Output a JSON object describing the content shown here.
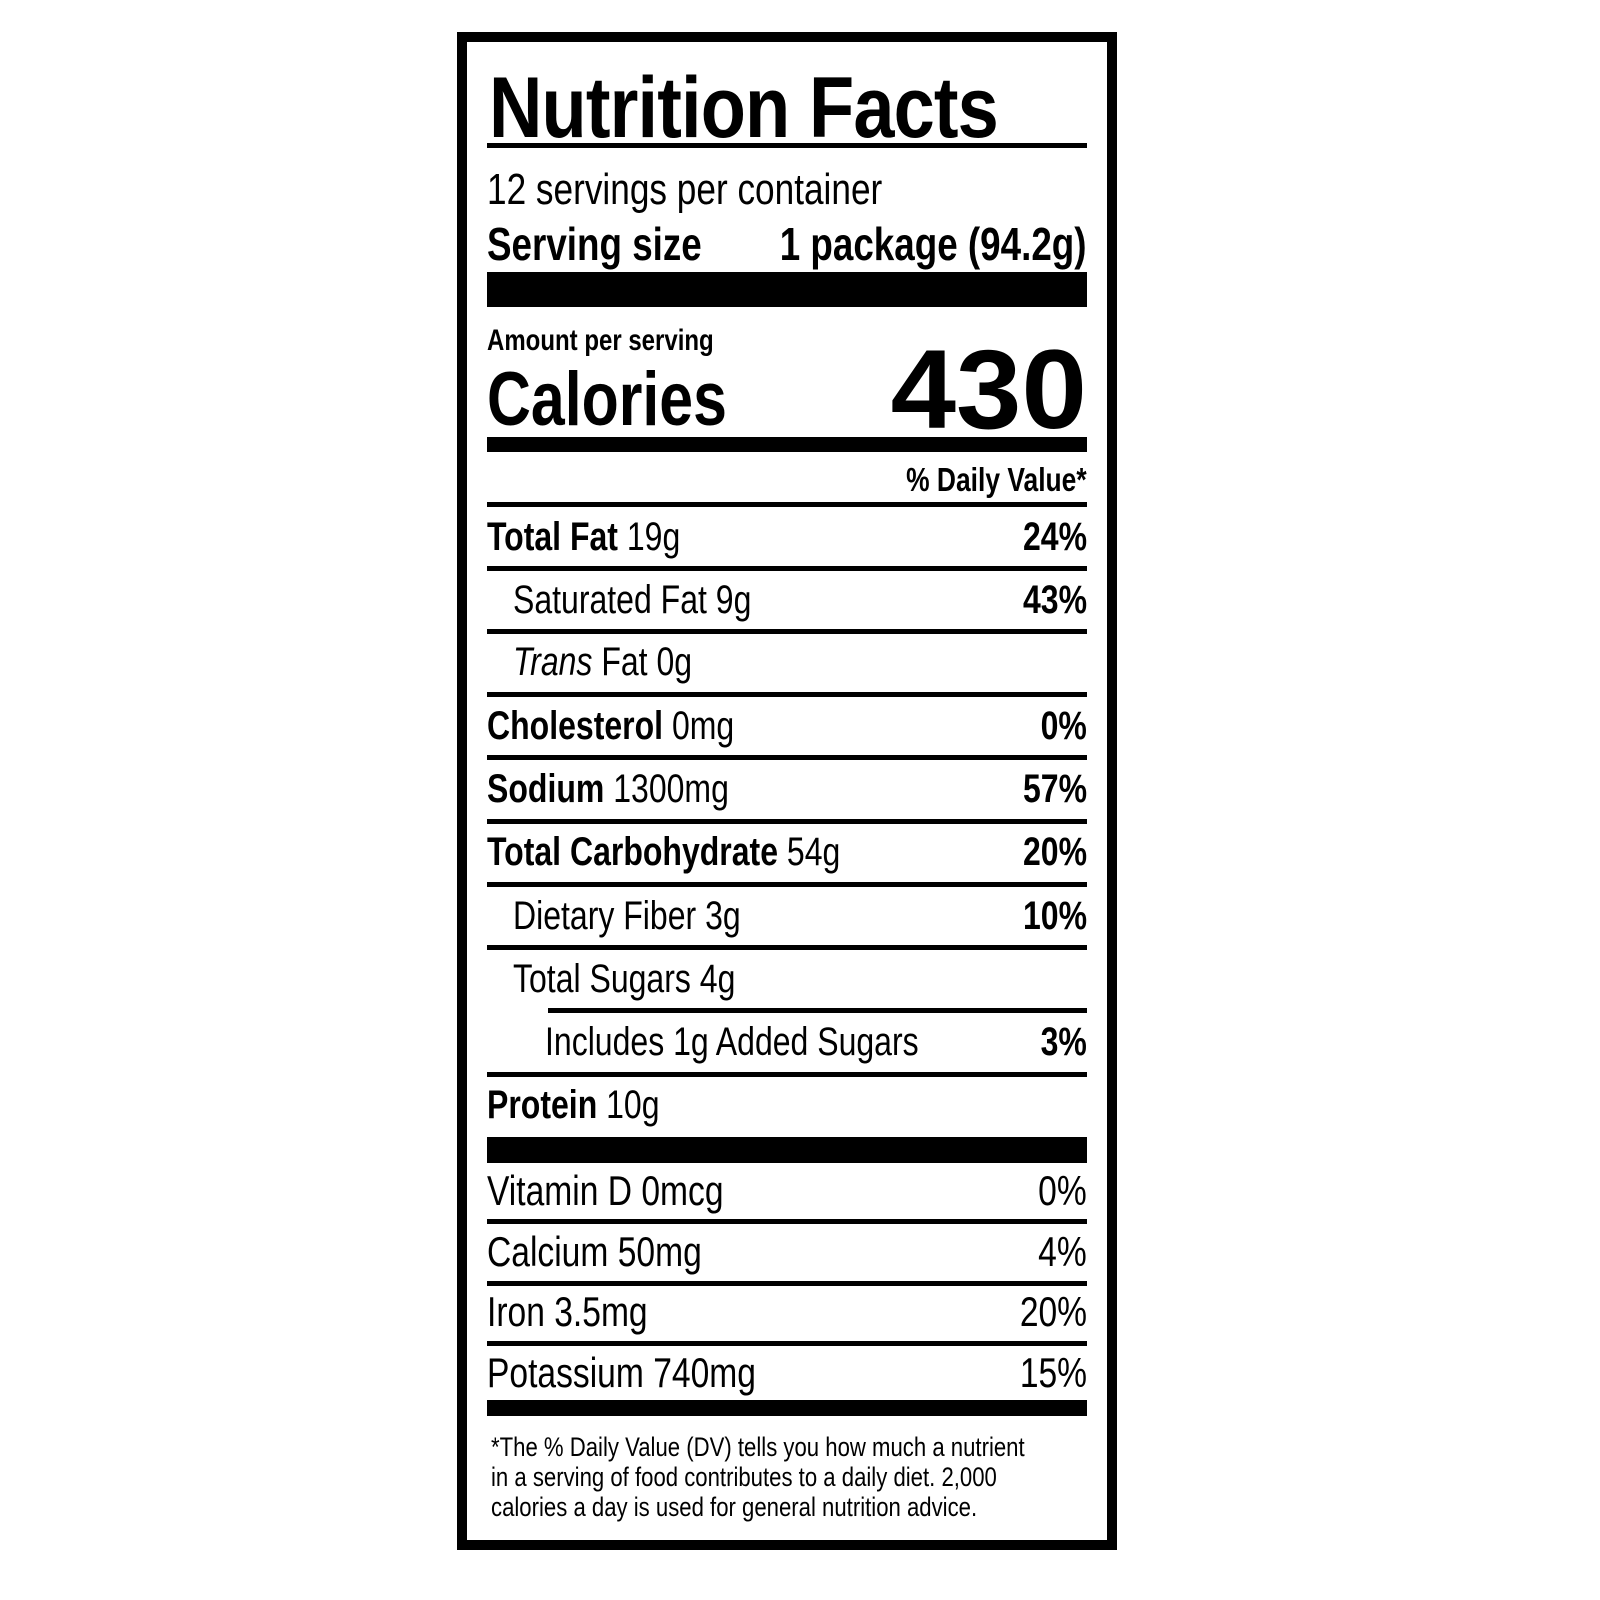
{
  "title": "Nutrition Facts",
  "servings_per_container": "12 servings per container",
  "serving_size_label": "Serving size",
  "serving_size_value": "1 package (94.2g)",
  "amount_per_serving": "Amount per serving",
  "calories_label": "Calories",
  "calories_value": "430",
  "daily_value_header": "% Daily Value*",
  "nutrients": [
    {
      "label": "Total Fat",
      "amount": "19g",
      "dv": "24%",
      "bold": true,
      "indent": 0
    },
    {
      "label": "Saturated Fat",
      "amount": "9g",
      "dv": "43%",
      "bold": false,
      "indent": 1
    },
    {
      "label_italic": "Trans",
      "label": " Fat",
      "amount": "0g",
      "dv": "",
      "bold": false,
      "indent": 1
    },
    {
      "label": "Cholesterol",
      "amount": "0mg",
      "dv": "0%",
      "bold": true,
      "indent": 0
    },
    {
      "label": "Sodium",
      "amount": "1300mg",
      "dv": "57%",
      "bold": true,
      "indent": 0
    },
    {
      "label": "Total Carbohydrate",
      "amount": "54g",
      "dv": "20%",
      "bold": true,
      "indent": 0
    },
    {
      "label": "Dietary Fiber",
      "amount": "3g",
      "dv": "10%",
      "bold": false,
      "indent": 1
    },
    {
      "label": "Total Sugars",
      "amount": "4g",
      "dv": "",
      "bold": false,
      "indent": 1
    },
    {
      "label": "Includes 1g Added Sugars",
      "amount": "",
      "dv": "3%",
      "bold": false,
      "indent": 2
    },
    {
      "label": "Protein",
      "amount": "10g",
      "dv": "",
      "bold": true,
      "indent": 0
    }
  ],
  "micronutrients": [
    {
      "label": "Vitamin D",
      "amount": "0mcg",
      "dv": "0%"
    },
    {
      "label": "Calcium",
      "amount": "50mg",
      "dv": "4%"
    },
    {
      "label": "Iron",
      "amount": "3.5mg",
      "dv": "20%"
    },
    {
      "label": "Potassium",
      "amount": "740mg",
      "dv": "15%"
    }
  ],
  "footnote": [
    "*The % Daily Value (DV) tells you how much a nutrient",
    " in a serving of food contributes to a daily diet. 2,000",
    " calories a day is used for general nutrition advice."
  ]
}
